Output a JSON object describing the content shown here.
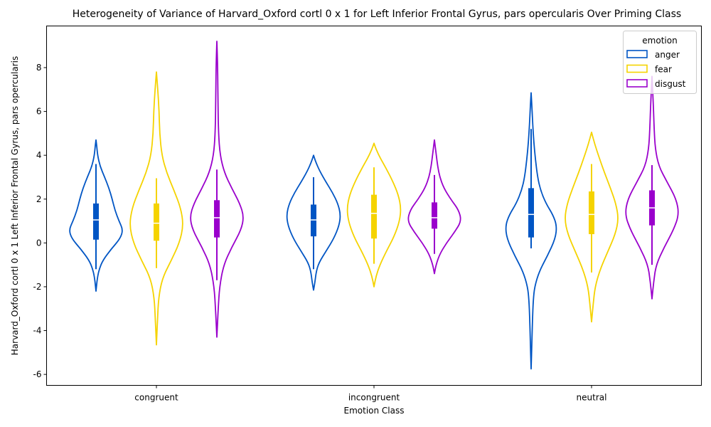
{
  "chart_data": {
    "type": "violin",
    "title": "Heterogeneity of Variance of Harvard_Oxford cortl 0 x 1 for Left Inferior Frontal Gyrus, pars opercularis Over Priming Class",
    "xlabel": "Emotion Class",
    "ylabel": "Harvard_Oxford cortl 0 x 1 Left Inferior Frontal Gyrus, pars opercularis",
    "categories": [
      "congruent",
      "incongruent",
      "neutral"
    ],
    "ylim": [
      -6.5,
      9.9
    ],
    "yticks": [
      -6,
      -4,
      -2,
      0,
      2,
      4,
      6,
      8
    ],
    "legend": {
      "title": "emotion",
      "position": "top-right",
      "entries": [
        "anger",
        "fear",
        "disgust"
      ]
    },
    "series": [
      {
        "name": "anger",
        "color": "#0055c4",
        "violins": [
          {
            "min": -2.2,
            "max": 4.7,
            "q1": 0.15,
            "median": 1.05,
            "q3": 1.8,
            "whisker_low": -1.2,
            "whisker_high": 3.6,
            "profile": [
              [
                -2.2,
                0.0
              ],
              [
                -1.6,
                0.05
              ],
              [
                -1.2,
                0.12
              ],
              [
                -0.8,
                0.25
              ],
              [
                -0.3,
                0.55
              ],
              [
                0.2,
                0.9
              ],
              [
                0.6,
                1.0
              ],
              [
                1.0,
                0.85
              ],
              [
                1.5,
                0.7
              ],
              [
                2.0,
                0.6
              ],
              [
                2.5,
                0.48
              ],
              [
                3.0,
                0.32
              ],
              [
                3.5,
                0.15
              ],
              [
                4.0,
                0.06
              ],
              [
                4.4,
                0.03
              ],
              [
                4.7,
                0.0
              ]
            ]
          },
          {
            "min": -2.15,
            "max": 4.0,
            "q1": 0.3,
            "median": 1.05,
            "q3": 1.75,
            "whisker_low": -1.2,
            "whisker_high": 3.0,
            "profile": [
              [
                -2.15,
                0.0
              ],
              [
                -1.8,
                0.05
              ],
              [
                -1.3,
                0.1
              ],
              [
                -0.9,
                0.2
              ],
              [
                -0.4,
                0.45
              ],
              [
                0.2,
                0.75
              ],
              [
                0.8,
                0.95
              ],
              [
                1.3,
                1.0
              ],
              [
                1.8,
                0.9
              ],
              [
                2.3,
                0.7
              ],
              [
                2.8,
                0.45
              ],
              [
                3.3,
                0.22
              ],
              [
                3.7,
                0.08
              ],
              [
                4.0,
                0.0
              ]
            ]
          },
          {
            "min": -5.75,
            "max": 6.85,
            "q1": 0.25,
            "median": 1.3,
            "q3": 2.5,
            "whisker_low": -0.25,
            "whisker_high": 5.2,
            "profile": [
              [
                -5.75,
                0.0
              ],
              [
                -4.5,
                0.03
              ],
              [
                -3.5,
                0.05
              ],
              [
                -2.6,
                0.08
              ],
              [
                -2.0,
                0.13
              ],
              [
                -1.3,
                0.3
              ],
              [
                -0.6,
                0.6
              ],
              [
                0.2,
                0.9
              ],
              [
                0.8,
                0.95
              ],
              [
                1.3,
                0.8
              ],
              [
                1.8,
                0.55
              ],
              [
                2.4,
                0.35
              ],
              [
                3.0,
                0.24
              ],
              [
                3.8,
                0.16
              ],
              [
                4.6,
                0.1
              ],
              [
                5.4,
                0.06
              ],
              [
                6.2,
                0.03
              ],
              [
                6.85,
                0.0
              ]
            ]
          }
        ]
      },
      {
        "name": "fear",
        "color": "#f5d300",
        "violins": [
          {
            "min": -4.65,
            "max": 7.8,
            "q1": 0.1,
            "median": 0.9,
            "q3": 1.8,
            "whisker_low": -1.15,
            "whisker_high": 2.95,
            "profile": [
              [
                -4.65,
                0.0
              ],
              [
                -3.5,
                0.04
              ],
              [
                -2.5,
                0.08
              ],
              [
                -1.6,
                0.22
              ],
              [
                -0.8,
                0.55
              ],
              [
                0.0,
                0.85
              ],
              [
                0.8,
                1.0
              ],
              [
                1.6,
                0.9
              ],
              [
                2.4,
                0.65
              ],
              [
                3.2,
                0.38
              ],
              [
                4.0,
                0.2
              ],
              [
                5.0,
                0.12
              ],
              [
                6.0,
                0.1
              ],
              [
                7.0,
                0.05
              ],
              [
                7.8,
                0.0
              ]
            ]
          },
          {
            "min": -2.0,
            "max": 4.55,
            "q1": 0.2,
            "median": 1.35,
            "q3": 2.2,
            "whisker_low": -0.95,
            "whisker_high": 3.45,
            "profile": [
              [
                -2.0,
                0.0
              ],
              [
                -1.5,
                0.08
              ],
              [
                -1.0,
                0.22
              ],
              [
                -0.4,
                0.45
              ],
              [
                0.3,
                0.75
              ],
              [
                1.0,
                0.95
              ],
              [
                1.6,
                1.0
              ],
              [
                2.2,
                0.9
              ],
              [
                2.8,
                0.7
              ],
              [
                3.4,
                0.45
              ],
              [
                3.9,
                0.22
              ],
              [
                4.3,
                0.07
              ],
              [
                4.55,
                0.0
              ]
            ]
          },
          {
            "min": -3.6,
            "max": 5.05,
            "q1": 0.4,
            "median": 1.3,
            "q3": 2.35,
            "whisker_low": -1.35,
            "whisker_high": 3.6,
            "profile": [
              [
                -3.6,
                0.0
              ],
              [
                -2.8,
                0.06
              ],
              [
                -2.0,
                0.13
              ],
              [
                -1.2,
                0.32
              ],
              [
                -0.4,
                0.6
              ],
              [
                0.4,
                0.88
              ],
              [
                1.1,
                1.0
              ],
              [
                1.8,
                0.9
              ],
              [
                2.5,
                0.7
              ],
              [
                3.2,
                0.48
              ],
              [
                3.9,
                0.28
              ],
              [
                4.5,
                0.12
              ],
              [
                5.05,
                0.0
              ]
            ]
          }
        ]
      },
      {
        "name": "disgust",
        "color": "#9a00cc",
        "violins": [
          {
            "min": -4.3,
            "max": 9.2,
            "q1": 0.25,
            "median": 1.15,
            "q3": 1.95,
            "whisker_low": -1.7,
            "whisker_high": 3.35,
            "profile": [
              [
                -4.3,
                0.0
              ],
              [
                -3.0,
                0.05
              ],
              [
                -2.0,
                0.1
              ],
              [
                -1.0,
                0.25
              ],
              [
                -0.2,
                0.55
              ],
              [
                0.6,
                0.9
              ],
              [
                1.2,
                1.0
              ],
              [
                1.8,
                0.85
              ],
              [
                2.5,
                0.55
              ],
              [
                3.2,
                0.28
              ],
              [
                4.0,
                0.12
              ],
              [
                5.0,
                0.06
              ],
              [
                6.5,
                0.04
              ],
              [
                8.0,
                0.03
              ],
              [
                9.2,
                0.0
              ]
            ]
          },
          {
            "min": -1.4,
            "max": 4.7,
            "q1": 0.65,
            "median": 1.15,
            "q3": 1.85,
            "whisker_low": -0.5,
            "whisker_high": 3.1,
            "profile": [
              [
                -1.4,
                0.0
              ],
              [
                -1.0,
                0.06
              ],
              [
                -0.5,
                0.2
              ],
              [
                0.0,
                0.45
              ],
              [
                0.5,
                0.75
              ],
              [
                1.0,
                1.0
              ],
              [
                1.5,
                0.9
              ],
              [
                2.0,
                0.6
              ],
              [
                2.5,
                0.35
              ],
              [
                3.0,
                0.2
              ],
              [
                3.5,
                0.12
              ],
              [
                4.0,
                0.07
              ],
              [
                4.4,
                0.03
              ],
              [
                4.7,
                0.0
              ]
            ]
          },
          {
            "min": -2.55,
            "max": 7.6,
            "q1": 0.8,
            "median": 1.6,
            "q3": 2.4,
            "whisker_low": -1.0,
            "whisker_high": 3.55,
            "profile": [
              [
                -2.55,
                0.0
              ],
              [
                -1.8,
                0.06
              ],
              [
                -1.0,
                0.15
              ],
              [
                -0.2,
                0.45
              ],
              [
                0.6,
                0.8
              ],
              [
                1.3,
                1.0
              ],
              [
                2.0,
                0.9
              ],
              [
                2.8,
                0.55
              ],
              [
                3.5,
                0.25
              ],
              [
                4.3,
                0.12
              ],
              [
                5.2,
                0.08
              ],
              [
                6.3,
                0.05
              ],
              [
                7.6,
                0.0
              ]
            ]
          }
        ]
      }
    ]
  }
}
